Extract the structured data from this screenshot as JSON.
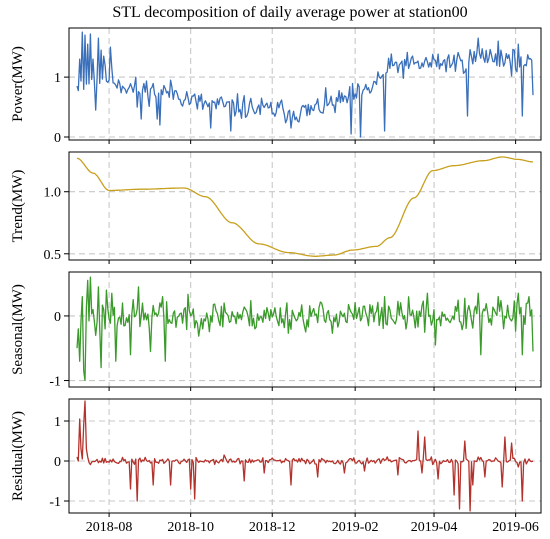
{
  "title": "STL decomposition of daily average power at station00",
  "chart_data": {
    "type": "line",
    "title": "STL decomposition of daily average power at station00",
    "x_start": "2018-07-08",
    "x_end": "2019-06-14",
    "x_ticks": [
      "2018-08",
      "2018-10",
      "2018-12",
      "2019-02",
      "2019-04",
      "2019-06"
    ],
    "x_tick_dates": [
      "2018-08-01",
      "2018-10-01",
      "2018-12-01",
      "2019-02-01",
      "2019-04-01",
      "2019-06-01"
    ],
    "grid": true,
    "panels": [
      {
        "name": "power",
        "ylabel": "Power(MW)",
        "color": "#3a6fba",
        "ylim": [
          -0.05,
          1.82
        ],
        "yticks": [
          "0",
          "1"
        ],
        "ytick_values": [
          0,
          1
        ],
        "kind": "raw",
        "knots": [
          [
            0,
            0.9
          ],
          [
            20,
            1.0
          ],
          [
            45,
            0.8
          ],
          [
            70,
            0.75
          ],
          [
            95,
            0.55
          ],
          [
            120,
            0.5
          ],
          [
            145,
            0.45
          ],
          [
            170,
            0.42
          ],
          [
            190,
            0.55
          ],
          [
            210,
            0.7
          ],
          [
            240,
            1.2
          ],
          [
            280,
            1.25
          ],
          [
            310,
            1.35
          ],
          [
            341,
            1.2
          ]
        ],
        "spread": 0.3,
        "seed": 11,
        "pins": [
          [
            0,
            0.85
          ],
          [
            2,
            1.3
          ],
          [
            4,
            1.75
          ],
          [
            6,
            1.7
          ],
          [
            8,
            1.55
          ],
          [
            10,
            1.72
          ],
          [
            12,
            1.3
          ],
          [
            14,
            0.45
          ],
          [
            16,
            1.65
          ],
          [
            18,
            1.45
          ],
          [
            20,
            1.35
          ],
          [
            25,
            1.5
          ],
          [
            45,
            0.5
          ],
          [
            48,
            0.3
          ],
          [
            60,
            0.3
          ],
          [
            62,
            0.2
          ],
          [
            100,
            0.15
          ],
          [
            115,
            0.1
          ],
          [
            160,
            0.15
          ],
          [
            205,
            0.05
          ],
          [
            212,
            0.0
          ],
          [
            230,
            0.1
          ],
          [
            292,
            0.35
          ],
          [
            300,
            1.65
          ],
          [
            315,
            1.6
          ],
          [
            330,
            1.55
          ],
          [
            333,
            0.35
          ],
          [
            338,
            1.3
          ],
          [
            341,
            0.7
          ]
        ]
      },
      {
        "name": "trend",
        "ylabel": "Trend(MW)",
        "color": "#c8a01e",
        "ylim": [
          0.45,
          1.32
        ],
        "yticks": [
          "0.5",
          "1.0"
        ],
        "ytick_values": [
          0.5,
          1.0
        ],
        "kind": "smooth",
        "knots": [
          [
            0,
            1.27
          ],
          [
            12,
            1.15
          ],
          [
            24,
            1.01
          ],
          [
            48,
            1.02
          ],
          [
            80,
            1.03
          ],
          [
            96,
            0.96
          ],
          [
            116,
            0.75
          ],
          [
            136,
            0.58
          ],
          [
            158,
            0.51
          ],
          [
            178,
            0.48
          ],
          [
            192,
            0.49
          ],
          [
            206,
            0.53
          ],
          [
            224,
            0.56
          ],
          [
            234,
            0.63
          ],
          [
            252,
            0.95
          ],
          [
            266,
            1.17
          ],
          [
            282,
            1.21
          ],
          [
            304,
            1.25
          ],
          [
            318,
            1.28
          ],
          [
            330,
            1.26
          ],
          [
            341,
            1.24
          ]
        ]
      },
      {
        "name": "seasonal",
        "ylabel": "Seasonal(MW)",
        "color": "#3a9a2a",
        "ylim": [
          -1.1,
          0.68
        ],
        "yticks": [
          "-1",
          "0"
        ],
        "ytick_values": [
          -1,
          0
        ],
        "kind": "raw",
        "knots": [
          [
            0,
            0.0
          ],
          [
            341,
            0.0
          ]
        ],
        "spread": 0.36,
        "seed": 23,
        "pins": [
          [
            0,
            -0.5
          ],
          [
            1,
            -0.2
          ],
          [
            2,
            -0.7
          ],
          [
            4,
            0.3
          ],
          [
            5,
            -0.85
          ],
          [
            6,
            -1.0
          ],
          [
            8,
            0.55
          ],
          [
            10,
            0.6
          ],
          [
            12,
            0.1
          ],
          [
            14,
            -0.3
          ],
          [
            16,
            0.45
          ],
          [
            18,
            -0.8
          ],
          [
            22,
            0.4
          ],
          [
            26,
            0.35
          ],
          [
            29,
            -0.7
          ],
          [
            34,
            0.2
          ],
          [
            40,
            -0.6
          ],
          [
            46,
            0.45
          ],
          [
            55,
            -0.55
          ],
          [
            64,
            0.3
          ],
          [
            66,
            -0.7
          ],
          [
            80,
            0.1
          ],
          [
            110,
            0.2
          ],
          [
            230,
            0.3
          ],
          [
            262,
            0.35
          ],
          [
            268,
            -0.45
          ],
          [
            300,
            0.35
          ],
          [
            302,
            -0.6
          ],
          [
            315,
            0.3
          ],
          [
            330,
            0.35
          ],
          [
            333,
            -0.6
          ],
          [
            338,
            0.3
          ],
          [
            341,
            -0.55
          ]
        ]
      },
      {
        "name": "residual",
        "ylabel": "Residual(MW)",
        "color": "#b4322c",
        "ylim": [
          -1.3,
          1.55
        ],
        "yticks": [
          "-1",
          "0",
          "1"
        ],
        "ytick_values": [
          -1,
          0,
          1
        ],
        "kind": "raw",
        "knots": [
          [
            0,
            0.0
          ],
          [
            341,
            0.0
          ]
        ],
        "spread": 0.12,
        "seed": 37,
        "pins": [
          [
            0,
            0.1
          ],
          [
            1,
            0.0
          ],
          [
            2,
            1.05
          ],
          [
            3,
            0.3
          ],
          [
            4,
            0.05
          ],
          [
            5,
            0.9
          ],
          [
            6,
            1.5
          ],
          [
            7,
            0.3
          ],
          [
            8,
            0.1
          ],
          [
            14,
            0.0
          ],
          [
            30,
            -0.05
          ],
          [
            40,
            -0.7
          ],
          [
            45,
            -1.0
          ],
          [
            57,
            -0.6
          ],
          [
            70,
            -0.6
          ],
          [
            85,
            -0.7
          ],
          [
            88,
            -0.95
          ],
          [
            92,
            0.0
          ],
          [
            110,
            0.15
          ],
          [
            125,
            -0.5
          ],
          [
            140,
            -0.3
          ],
          [
            160,
            -0.6
          ],
          [
            180,
            -0.4
          ],
          [
            200,
            -0.3
          ],
          [
            215,
            -0.25
          ],
          [
            240,
            -0.35
          ],
          [
            255,
            0.75
          ],
          [
            258,
            -0.3
          ],
          [
            260,
            0.6
          ],
          [
            270,
            -0.45
          ],
          [
            282,
            -0.85
          ],
          [
            286,
            -1.2
          ],
          [
            290,
            0.5
          ],
          [
            294,
            -1.25
          ],
          [
            296,
            -0.6
          ],
          [
            300,
            0.1
          ],
          [
            305,
            -0.4
          ],
          [
            318,
            -0.65
          ],
          [
            320,
            0.6
          ],
          [
            325,
            0.45
          ],
          [
            330,
            -0.15
          ],
          [
            333,
            -1.0
          ],
          [
            335,
            0.05
          ],
          [
            341,
            0.0
          ]
        ]
      }
    ]
  }
}
